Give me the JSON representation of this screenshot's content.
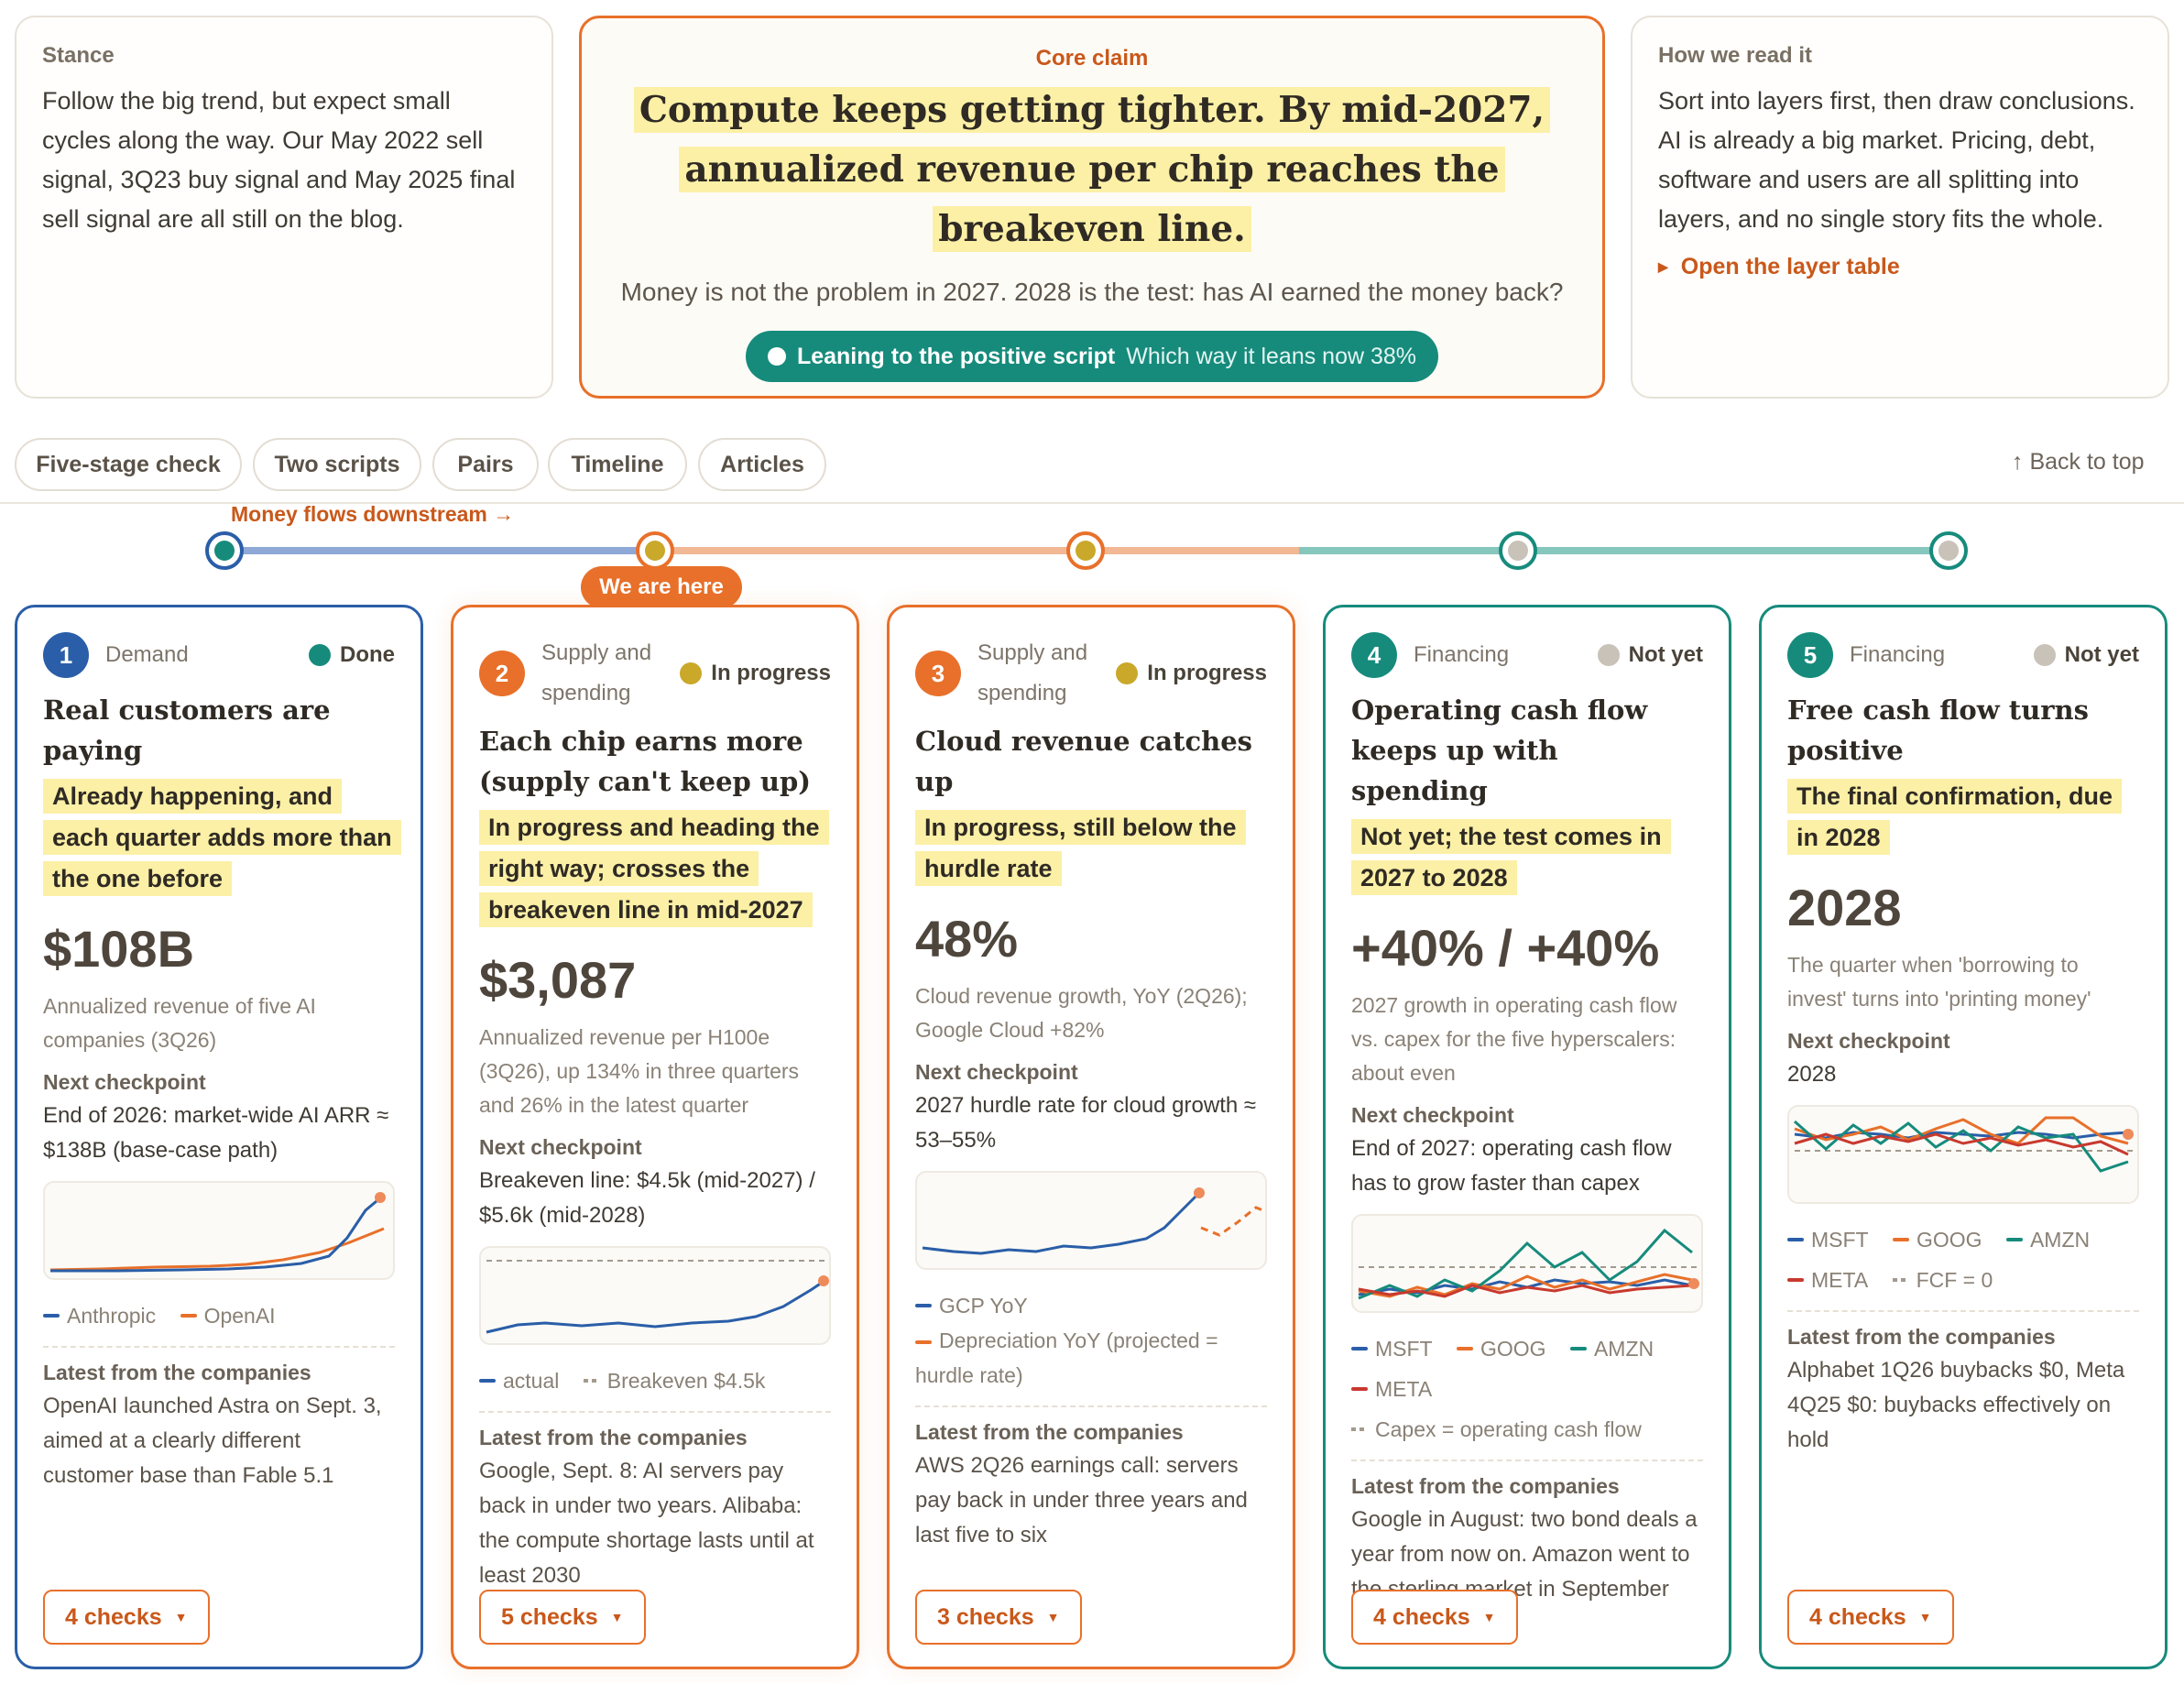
{
  "stance": {
    "label": "Stance",
    "text": "Follow the big trend, but expect small cycles along the way. Our May 2022 sell signal, 3Q23 buy signal and May 2025 final sell signal are all still on the blog."
  },
  "core": {
    "label": "Core claim",
    "claim": "Compute keeps getting tighter. By mid-2027, annualized revenue per chip reaches the breakeven line.",
    "sub": "Money is not the problem in 2027. 2028 is the test: has AI earned the money back?",
    "pill_label": "Leaning to the positive script",
    "pill_value": "Which way it leans now 38%",
    "pill_percent": 38
  },
  "how": {
    "label": "How we read it",
    "text": "Sort into layers first, then draw conclusions. AI is already a big market. Pricing, debt, software and users are all splitting into layers, and no single story fits the whole.",
    "link": "Open the layer table"
  },
  "nav": {
    "tabs": [
      "Five-stage check",
      "Two scripts",
      "Pairs",
      "Timeline",
      "Articles"
    ],
    "back_to_top": "↑ Back to top"
  },
  "flow": {
    "label": "Money flows downstream →",
    "here": "We are here"
  },
  "colors": {
    "blue": "#2a5ea8",
    "orange": "#e8702a",
    "teal": "#168b7c",
    "gold": "#c9a82a",
    "gray": "#c8c2b8",
    "highlight": "#fcf0a6"
  },
  "cards": [
    {
      "num": "1",
      "stage": "Demand",
      "status": "Done",
      "title": "Real customers are paying",
      "highlight": "Already happening, and each quarter adds more than the one before",
      "big": "$108B",
      "desc": "Annualized revenue of five AI companies (3Q26)",
      "next_label": "Next checkpoint",
      "next": "End of 2026: market-wide AI ARR ≈ $138B (base-case path)",
      "legend": [
        "Anthropic",
        "OpenAI"
      ],
      "latest_label": "Latest from the companies",
      "latest": "OpenAI launched Astra on Sept. 3, aimed at a clearly different customer base than Fable 5.1",
      "checks": "4 checks"
    },
    {
      "num": "2",
      "stage": "Supply and spending",
      "status": "In progress",
      "title": "Each chip earns more (supply can't keep up)",
      "highlight": "In progress and heading the right way; crosses the breakeven line in mid-2027",
      "big": "$3,087",
      "desc": "Annualized revenue per H100e (3Q26), up 134% in three quarters and 26% in the latest quarter",
      "next_label": "Next checkpoint",
      "next": "Breakeven line: $4.5k (mid-2027) / $5.6k (mid-2028)",
      "legend": [
        "actual",
        "Breakeven $4.5k"
      ],
      "latest_label": "Latest from the companies",
      "latest": "Google, Sept. 8: AI servers pay back in under two years. Alibaba: the compute shortage lasts until at least 2030",
      "checks": "5 checks"
    },
    {
      "num": "3",
      "stage": "Supply and spending",
      "status": "In progress",
      "title": "Cloud revenue catches up",
      "highlight": "In progress, still below the hurdle rate",
      "big": "48%",
      "desc": "Cloud revenue growth, YoY (2Q26); Google Cloud +82%",
      "next_label": "Next checkpoint",
      "next": "2027 hurdle rate for cloud growth ≈ 53–55%",
      "legend": [
        "GCP YoY",
        "Depreciation YoY (projected = hurdle rate)"
      ],
      "latest_label": "Latest from the companies",
      "latest": "AWS 2Q26 earnings call: servers pay back in under three years and last five to six",
      "checks": "3 checks"
    },
    {
      "num": "4",
      "stage": "Financing",
      "status": "Not yet",
      "title": "Operating cash flow keeps up with spending",
      "highlight": "Not yet; the test comes in 2027 to 2028",
      "big": "+40% / +40%",
      "desc": "2027 growth in operating cash flow vs. capex for the five hyperscalers: about even",
      "next_label": "Next checkpoint",
      "next": "End of 2027: operating cash flow has to grow faster than capex",
      "legend": [
        "MSFT",
        "GOOG",
        "AMZN",
        "META",
        "Capex = operating cash flow"
      ],
      "latest_label": "Latest from the companies",
      "latest": "Google in August: two bond deals a year from now on. Amazon went to the sterling market in September",
      "checks": "4 checks"
    },
    {
      "num": "5",
      "stage": "Financing",
      "status": "Not yet",
      "title": "Free cash flow turns positive",
      "highlight": "The final confirmation, due in 2028",
      "big": "2028",
      "desc": "The quarter when 'borrowing to invest' turns into 'printing money'",
      "next_label": "Next checkpoint",
      "next": "2028",
      "legend": [
        "MSFT",
        "GOOG",
        "AMZN",
        "META",
        "FCF = 0"
      ],
      "latest_label": "Latest from the companies",
      "latest": "Alphabet 1Q26 buybacks $0, Meta 4Q25 $0: buybacks effectively on hold",
      "checks": "4 checks"
    }
  ]
}
